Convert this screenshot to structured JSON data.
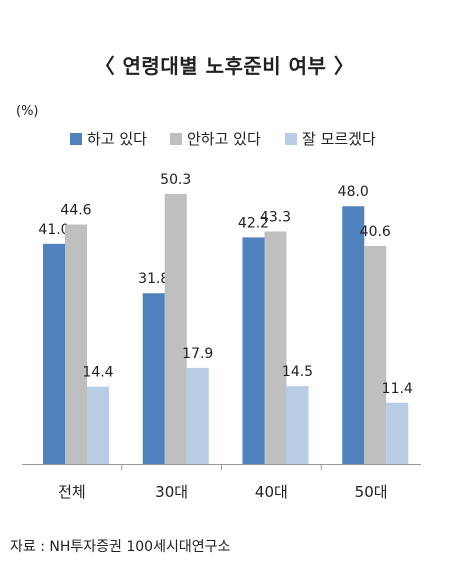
{
  "chart_data": {
    "type": "bar",
    "title": "〈 연령대별 노후준비 여부 〉",
    "unit": "(%)",
    "categories": [
      "전체",
      "30대",
      "40대",
      "50대"
    ],
    "series": [
      {
        "name": "하고 있다",
        "values": [
          41.0,
          31.8,
          42.2,
          48.0
        ],
        "color": "#4f81bd"
      },
      {
        "name": "안하고 있다",
        "values": [
          44.6,
          50.3,
          43.3,
          40.6
        ],
        "color": "#bfbfbf"
      },
      {
        "name": "잘 모르겠다",
        "values": [
          14.4,
          17.9,
          14.5,
          11.4
        ],
        "color": "#b9cde5"
      }
    ],
    "ylim": [
      0,
      60
    ],
    "legend_position": "top",
    "grid": false
  },
  "source": "자료 : NH투자증권 100세시대연구소"
}
